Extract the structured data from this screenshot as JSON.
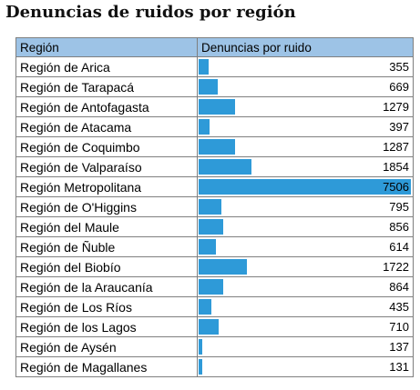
{
  "title": "Denuncias de ruidos por región",
  "chart_data": {
    "type": "bar",
    "orientation": "horizontal",
    "title": "Denuncias de ruidos por región",
    "column_headers": [
      "Región",
      "Denuncias por ruido"
    ],
    "categories": [
      "Región de Arica",
      "Región de Tarapacá",
      "Región de Antofagasta",
      "Región de Atacama",
      "Región de Coquimbo",
      "Región de Valparaíso",
      "Región Metropolitana",
      "Región de O'Higgins",
      "Región del Maule",
      "Región de Ñuble",
      "Región del Biobío",
      "Región de la Araucanía",
      "Región de Los Ríos",
      "Región de los Lagos",
      "Región de Aysén",
      "Región de Magallanes"
    ],
    "values": [
      355,
      669,
      1279,
      397,
      1287,
      1854,
      7506,
      795,
      856,
      614,
      1722,
      864,
      435,
      710,
      137,
      131
    ],
    "xlim": [
      0,
      7506
    ],
    "bar_color": "#2e9ad8",
    "header_color": "#9dc3e6"
  }
}
